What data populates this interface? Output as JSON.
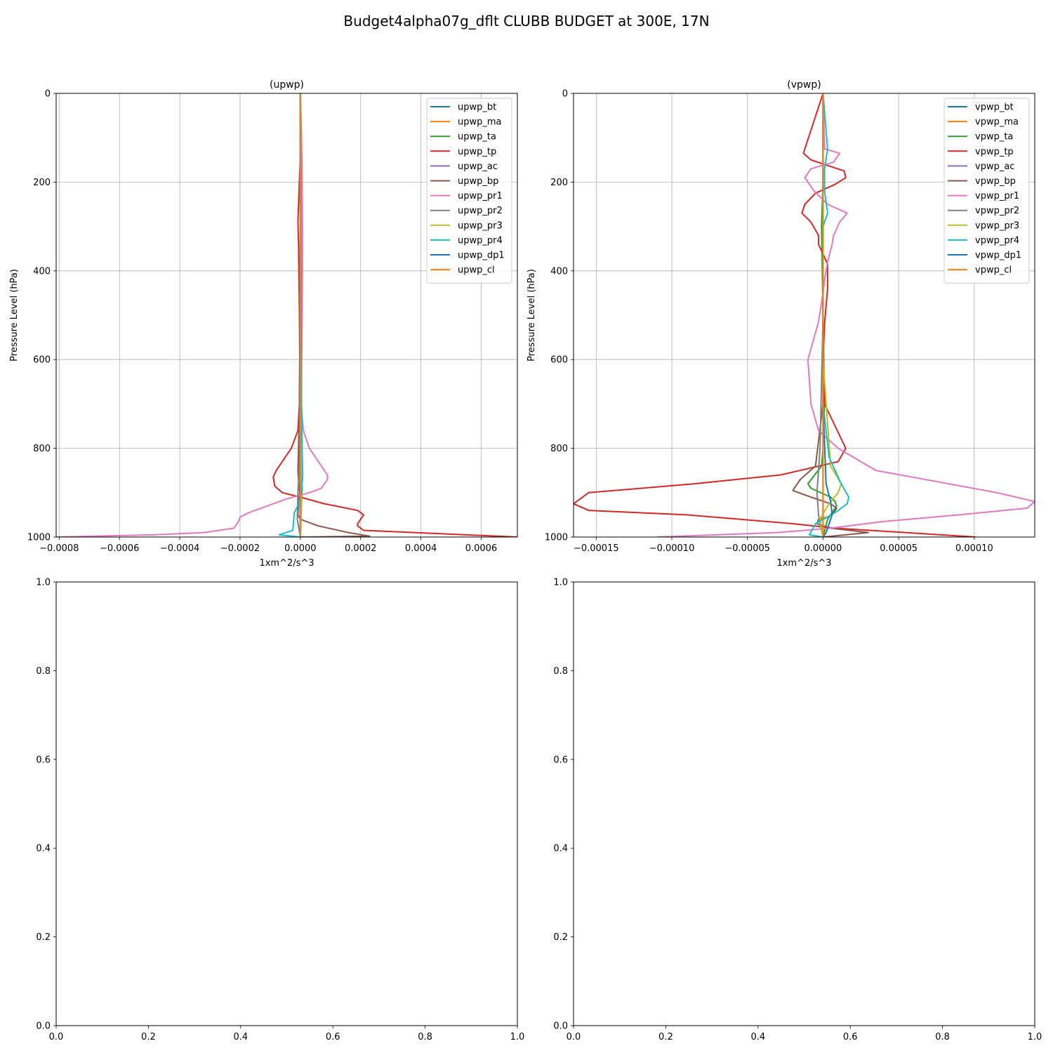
{
  "figure": {
    "suptitle": "Budget4alpha07g_dflt CLUBB BUDGET at 300E, 17N"
  },
  "chart_data": [
    {
      "type": "line",
      "title": "(upwp)",
      "xlabel": "1xm^2/s^3",
      "ylabel": "Pressure Level (hPa)",
      "xlim": [
        -0.00081,
        0.00072
      ],
      "ylim": [
        1000,
        0
      ],
      "xticks": [
        -0.0008,
        -0.0006,
        -0.0004,
        -0.0002,
        0.0,
        0.0002,
        0.0004,
        0.0006
      ],
      "xtick_labels": [
        "−0.0008",
        "−0.0006",
        "−0.0004",
        "−0.0002",
        "0.0000",
        "0.0002",
        "0.0004",
        "0.0006"
      ],
      "yticks": [
        0,
        200,
        400,
        600,
        800,
        1000
      ],
      "ytick_labels": [
        "0",
        "200",
        "400",
        "600",
        "800",
        "1000"
      ],
      "grid": true,
      "legend": "top-right",
      "series": [
        {
          "name": "upwp_bt",
          "color": "#1f77b4",
          "x": [
            0,
            0,
            0,
            0
          ],
          "y": [
            0,
            500,
            900,
            1000
          ]
        },
        {
          "name": "upwp_ma",
          "color": "#ff7f0e",
          "x": [
            0,
            0,
            0,
            0
          ],
          "y": [
            0,
            500,
            900,
            1000
          ]
        },
        {
          "name": "upwp_ta",
          "color": "#2ca02c",
          "x": [
            0,
            0,
            0,
            1e-06,
            3e-06,
            6e-06,
            4e-06,
            2e-06,
            0
          ],
          "y": [
            0,
            400,
            700,
            800,
            860,
            890,
            920,
            960,
            1000
          ]
        },
        {
          "name": "upwp_tp",
          "color": "#d62728",
          "x": [
            0,
            1e-06,
            -1e-06,
            -5e-06,
            -8e-06,
            -6e-06,
            -4e-06,
            -3e-06,
            -2e-06,
            -3e-06,
            -8e-06,
            -3e-05,
            -6e-05,
            -8e-05,
            -9e-05,
            -8.5e-05,
            -6e-05,
            0,
            8e-05,
            0.00019,
            0.00021,
            0.0002,
            0.00019,
            0.00019,
            0.00021,
            0.00072
          ],
          "y": [
            0,
            100,
            160,
            230,
            290,
            340,
            450,
            500,
            600,
            700,
            760,
            800,
            830,
            850,
            865,
            885,
            900,
            910,
            925,
            940,
            950,
            960,
            970,
            975,
            985,
            1000
          ]
        },
        {
          "name": "upwp_ac",
          "color": "#9467bd",
          "x": [
            0,
            0,
            0,
            0
          ],
          "y": [
            0,
            500,
            900,
            1000
          ]
        },
        {
          "name": "upwp_bp",
          "color": "#8c564b",
          "x": [
            0,
            0,
            -3e-06,
            -6e-06,
            -8e-06,
            -5e-06,
            -2e-06,
            -5e-06,
            -8e-06,
            0,
            6e-05,
            0.00016,
            0.00023,
            0
          ],
          "y": [
            0,
            400,
            700,
            800,
            850,
            880,
            900,
            920,
            950,
            960,
            975,
            990,
            998,
            1000
          ]
        },
        {
          "name": "upwp_pr1",
          "color": "#e377c2",
          "x": [
            0,
            4e-06,
            6e-06,
            7e-06,
            7e-06,
            6e-06,
            3e-06,
            1e-05,
            3e-05,
            7e-05,
            9e-05,
            9e-05,
            7e-05,
            3e-05,
            -5e-05,
            -0.00011,
            -0.00017,
            -0.0002,
            -0.000205,
            -0.00022,
            -0.00032,
            -0.00049,
            -0.00081
          ],
          "y": [
            0,
            100,
            200,
            300,
            400,
            500,
            700,
            760,
            800,
            840,
            860,
            870,
            890,
            900,
            915,
            930,
            945,
            955,
            965,
            980,
            990,
            995,
            1000
          ]
        },
        {
          "name": "upwp_pr2",
          "color": "#7f7f7f",
          "x": [
            0,
            0,
            -2e-06,
            -4e-06,
            -8e-06,
            -1e-05,
            0
          ],
          "y": [
            0,
            500,
            800,
            850,
            900,
            960,
            1000
          ]
        },
        {
          "name": "upwp_pr3",
          "color": "#bcbd22",
          "x": [
            0,
            0,
            2e-06,
            3e-06,
            4e-06,
            2e-06,
            0
          ],
          "y": [
            0,
            500,
            800,
            860,
            900,
            950,
            1000
          ]
        },
        {
          "name": "upwp_pr4",
          "color": "#17becf",
          "x": [
            0,
            2e-06,
            4e-06,
            6e-06,
            8e-06,
            4e-06,
            -5e-06,
            -2e-05,
            -2.5e-05,
            -7e-05,
            0
          ],
          "y": [
            0,
            200,
            700,
            800,
            860,
            900,
            925,
            945,
            985,
            995,
            1000
          ]
        },
        {
          "name": "upwp_dp1",
          "color": "#1f77b4",
          "x": [
            0,
            0,
            0,
            0
          ],
          "y": [
            0,
            500,
            900,
            1000
          ]
        },
        {
          "name": "upwp_cl",
          "color": "#ff7f0e",
          "x": [
            0,
            0,
            0,
            0
          ],
          "y": [
            0,
            500,
            900,
            1000
          ]
        }
      ]
    },
    {
      "type": "line",
      "title": "(vpwp)",
      "xlabel": "1xm^2/s^3",
      "ylabel": "Pressure Level (hPa)",
      "xlim": [
        -0.000165,
        0.00014
      ],
      "ylim": [
        1000,
        0
      ],
      "xticks": [
        -0.00015,
        -0.0001,
        -5e-05,
        0.0,
        5e-05,
        0.0001
      ],
      "xtick_labels": [
        "−0.00015",
        "−0.00010",
        "−0.00005",
        "0.00000",
        "0.00005",
        "0.00010"
      ],
      "yticks": [
        0,
        200,
        400,
        600,
        800,
        1000
      ],
      "ytick_labels": [
        "0",
        "200",
        "400",
        "600",
        "800",
        "1000"
      ],
      "grid": true,
      "legend": "top-right",
      "series": [
        {
          "name": "vpwp_bt",
          "color": "#1f77b4",
          "x": [
            0,
            0,
            0,
            0
          ],
          "y": [
            0,
            500,
            900,
            1000
          ]
        },
        {
          "name": "vpwp_ma",
          "color": "#ff7f0e",
          "x": [
            0,
            0,
            0,
            0
          ],
          "y": [
            0,
            500,
            900,
            1000
          ]
        },
        {
          "name": "vpwp_ta",
          "color": "#2ca02c",
          "x": [
            0,
            0,
            -1e-06,
            1e-06,
            0,
            -1e-06,
            -1e-05,
            -8e-06,
            5e-06,
            8e-06,
            9e-06,
            3e-06,
            0
          ],
          "y": [
            0,
            200,
            300,
            700,
            800,
            840,
            880,
            890,
            910,
            920,
            930,
            960,
            1000
          ]
        },
        {
          "name": "vpwp_tp",
          "color": "#d62728",
          "x": [
            0,
            -1.3e-05,
            -8e-06,
            1.4e-05,
            1.5e-05,
            8e-06,
            -5e-06,
            -1.2e-05,
            -1.4e-05,
            -8e-06,
            -3e-06,
            -3e-06,
            3e-06,
            3e-06,
            1e-06,
            0,
            1e-06,
            8e-06,
            1.5e-05,
            1e-05,
            -2.8e-05,
            -8.5e-05,
            -0.000155,
            -0.000165,
            -0.000155,
            -9e-05,
            -2e-05,
            8e-06,
            0.000101
          ],
          "y": [
            0,
            135,
            150,
            175,
            190,
            205,
            225,
            250,
            270,
            290,
            320,
            340,
            385,
            440,
            520,
            600,
            700,
            750,
            800,
            830,
            860,
            880,
            900,
            925,
            940,
            950,
            970,
            980,
            1000
          ]
        },
        {
          "name": "vpwp_ac",
          "color": "#9467bd",
          "x": [
            0,
            0,
            0,
            0
          ],
          "y": [
            0,
            500,
            900,
            1000
          ]
        },
        {
          "name": "vpwp_bp",
          "color": "#8c564b",
          "x": [
            0,
            0,
            -5e-06,
            -1.5e-05,
            -2e-05,
            -8e-06,
            5e-06,
            9e-06,
            7e-06,
            3e-06,
            -3e-06,
            -4e-06,
            5e-06,
            3e-05,
            0
          ],
          "y": [
            0,
            700,
            840,
            870,
            895,
            910,
            925,
            935,
            945,
            955,
            960,
            970,
            980,
            990,
            1000
          ]
        },
        {
          "name": "vpwp_pr1",
          "color": "#e377c2",
          "x": [
            0,
            1e-06,
            1.1e-05,
            7e-06,
            -8e-06,
            -1.2e-05,
            -6e-06,
            3e-06,
            1.6e-05,
            1.1e-05,
            7e-06,
            6e-06,
            3e-06,
            1e-06,
            0,
            -3e-06,
            -1e-05,
            -8e-06,
            -3e-06,
            1e-05,
            3.5e-05,
            0.000115,
            0.00014,
            0.000135,
            9e-05,
            4e-05,
            5e-06,
            -3e-05,
            -0.00011
          ],
          "y": [
            0,
            125,
            135,
            155,
            170,
            190,
            220,
            250,
            270,
            290,
            320,
            340,
            380,
            420,
            450,
            515,
            600,
            700,
            760,
            800,
            850,
            900,
            920,
            935,
            950,
            965,
            980,
            990,
            1000
          ]
        },
        {
          "name": "vpwp_pr2",
          "color": "#7f7f7f",
          "x": [
            0,
            0,
            -2e-06,
            -4e-06,
            -3e-06,
            0
          ],
          "y": [
            0,
            500,
            800,
            900,
            950,
            1000
          ]
        },
        {
          "name": "vpwp_pr3",
          "color": "#bcbd22",
          "x": [
            0,
            0,
            5e-06,
            1.2e-05,
            1e-05,
            3e-06,
            -2e-06,
            0
          ],
          "y": [
            0,
            600,
            840,
            880,
            900,
            930,
            960,
            1000
          ]
        },
        {
          "name": "vpwp_pr4",
          "color": "#17becf",
          "x": [
            0,
            3e-06,
            1e-06,
            1e-06,
            3e-06,
            0,
            0,
            4e-06,
            1.2e-05,
            1.7e-05,
            1.6e-05,
            8e-06,
            -5e-06,
            -9e-06,
            0
          ],
          "y": [
            0,
            125,
            170,
            220,
            270,
            300,
            700,
            820,
            880,
            910,
            925,
            945,
            970,
            995,
            1000
          ]
        },
        {
          "name": "vpwp_dp1",
          "color": "#1f77b4",
          "x": [
            0,
            0,
            2e-06,
            5e-06,
            6e-06,
            4e-06,
            2e-06,
            0
          ],
          "y": [
            0,
            700,
            880,
            920,
            950,
            970,
            990,
            1000
          ]
        },
        {
          "name": "vpwp_cl",
          "color": "#ff7f0e",
          "x": [
            0,
            0,
            0,
            0
          ],
          "y": [
            0,
            500,
            900,
            1000
          ]
        }
      ]
    },
    {
      "type": "line",
      "title": "",
      "xlabel": "",
      "ylabel": "",
      "xlim": [
        0,
        1
      ],
      "ylim": [
        0,
        1
      ],
      "xticks": [
        0,
        0.2,
        0.4,
        0.6,
        0.8,
        1.0
      ],
      "xtick_labels": [
        "0.0",
        "0.2",
        "0.4",
        "0.6",
        "0.8",
        "1.0"
      ],
      "yticks": [
        0,
        0.2,
        0.4,
        0.6,
        0.8,
        1.0
      ],
      "ytick_labels": [
        "0.0",
        "0.2",
        "0.4",
        "0.6",
        "0.8",
        "1.0"
      ],
      "grid": false,
      "series": []
    },
    {
      "type": "line",
      "title": "",
      "xlabel": "",
      "ylabel": "",
      "xlim": [
        0,
        1
      ],
      "ylim": [
        0,
        1
      ],
      "xticks": [
        0,
        0.2,
        0.4,
        0.6,
        0.8,
        1.0
      ],
      "xtick_labels": [
        "0.0",
        "0.2",
        "0.4",
        "0.6",
        "0.8",
        "1.0"
      ],
      "yticks": [
        0,
        0.2,
        0.4,
        0.6,
        0.8,
        1.0
      ],
      "ytick_labels": [
        "0.0",
        "0.2",
        "0.4",
        "0.6",
        "0.8",
        "1.0"
      ],
      "grid": false,
      "series": []
    }
  ]
}
